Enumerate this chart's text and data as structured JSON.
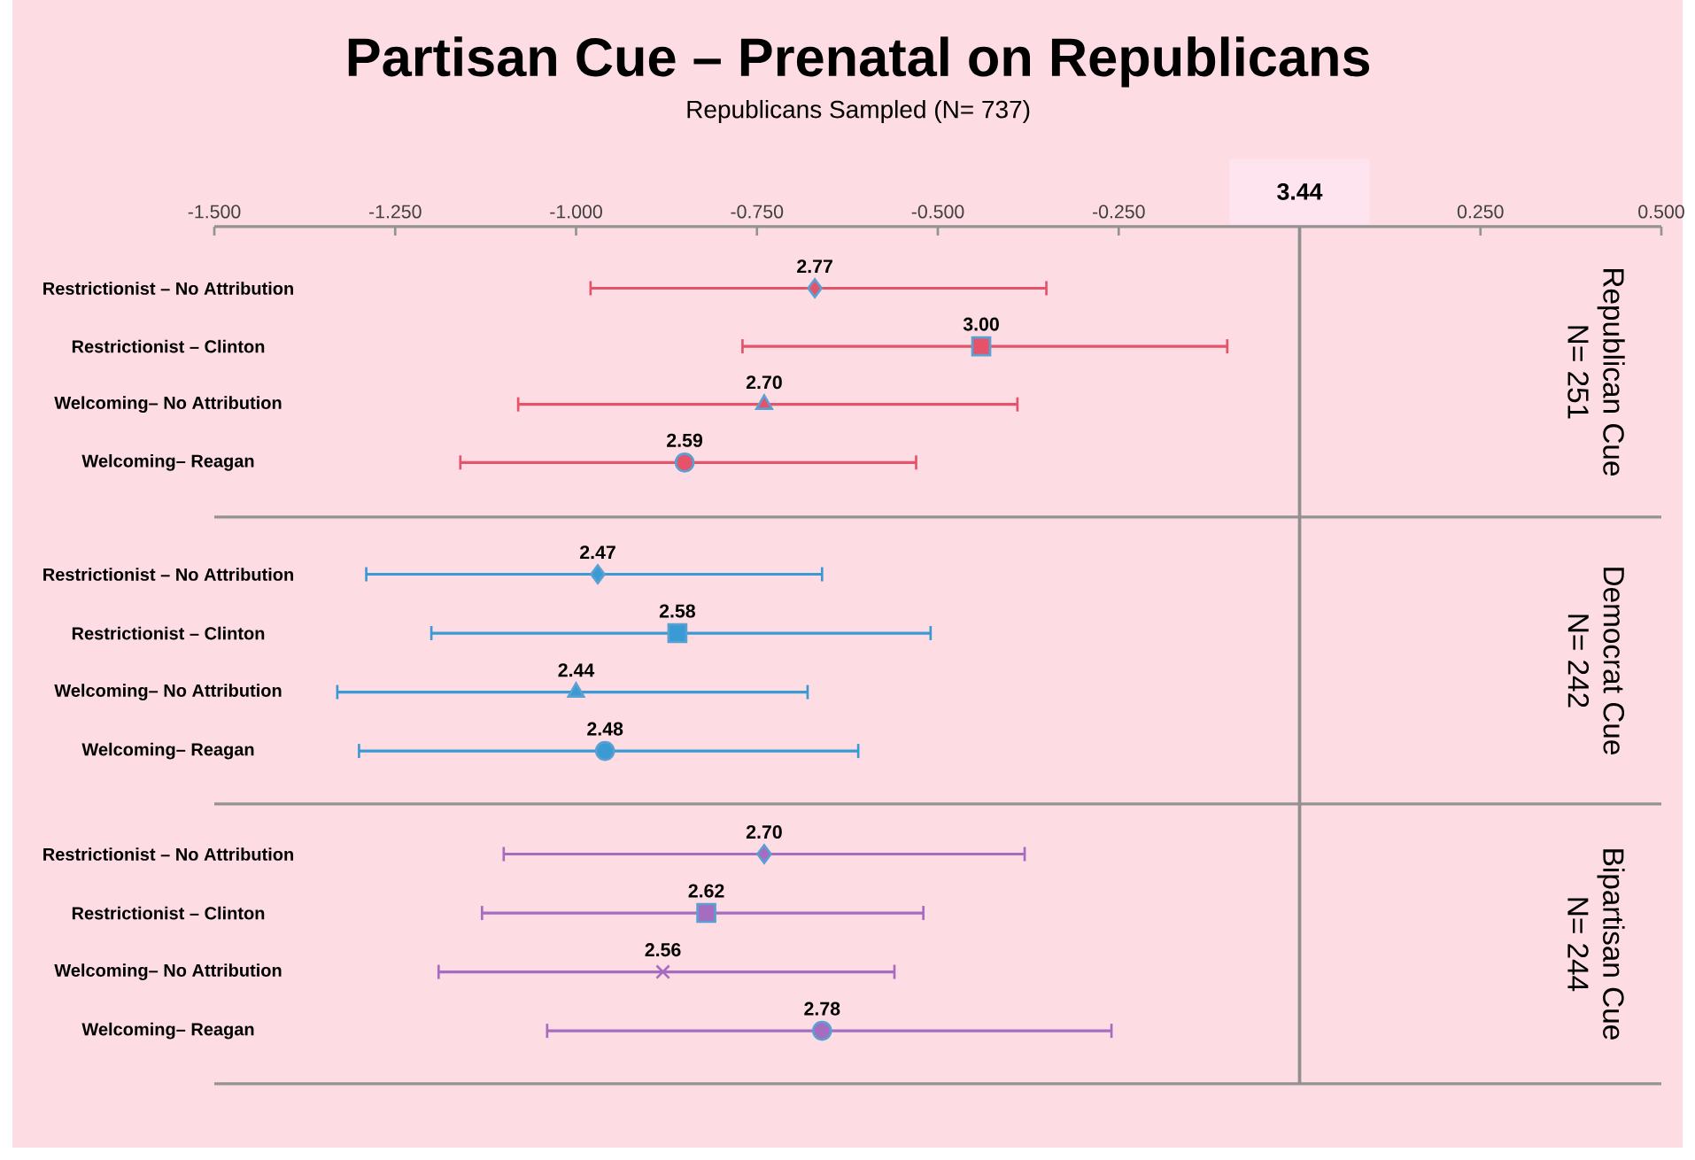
{
  "chart_data": [
    {
      "type": "scatter",
      "orientation": "horizontal",
      "title": "Partisan Cue – Prenatal on Republicans",
      "subtitle": "Republicans Sampled (N= 737)",
      "categories": [
        "Restrictionist – No Attribution",
        "Restrictionist – Clinton",
        "Welcoming– No Attribution",
        "Welcoming– Reagan"
      ],
      "xlim": [
        -1.5,
        0.5
      ],
      "xticks": [
        {
          "value": -1.5,
          "label": "-1.500"
        },
        {
          "value": -1.25,
          "label": "-1.250"
        },
        {
          "value": -1.0,
          "label": "-1.000"
        },
        {
          "value": -0.75,
          "label": "-0.750"
        },
        {
          "value": -0.5,
          "label": "-0.500"
        },
        {
          "value": -0.25,
          "label": "-0.250"
        },
        {
          "value": 0.25,
          "label": "0.250"
        },
        {
          "value": 0.5,
          "label": "0.500"
        }
      ],
      "ref_lines": [
        {
          "axis": "x",
          "value": 0,
          "color": "#909090"
        }
      ],
      "annotations": [
        "3.44",
        "Republican Cue",
        "N= 251",
        {
          "text": "2.77",
          "x": -0.67,
          "y": "Restrictionist – No Attribution"
        },
        {
          "text": "3.00",
          "x": -0.44,
          "y": "Restrictionist – Clinton"
        },
        {
          "text": "2.70",
          "x": -0.74,
          "y": "Welcoming– No Attribution"
        },
        {
          "text": "2.59",
          "x": -0.85,
          "y": "Welcoming– Reagan"
        }
      ],
      "series": [
        {
          "color": "#e5536a",
          "marker": "diamond",
          "values": [
            -0.67,
            null,
            null,
            null
          ],
          "errors": [
            [
              -0.98,
              -0.35
            ],
            null,
            null,
            null
          ]
        },
        {
          "color": "#e5536a",
          "marker": "square",
          "values": [
            null,
            -0.44,
            null,
            null
          ],
          "errors": [
            null,
            [
              -0.77,
              -0.1
            ],
            null,
            null
          ]
        },
        {
          "color": "#e5536a",
          "marker": "triangle",
          "values": [
            null,
            null,
            -0.74,
            null
          ],
          "errors": [
            null,
            null,
            [
              -1.08,
              -0.39
            ],
            null
          ]
        },
        {
          "color": "#e5536a",
          "marker": "circle",
          "values": [
            null,
            null,
            null,
            -0.85
          ],
          "errors": [
            null,
            null,
            null,
            [
              -1.16,
              -0.53
            ]
          ]
        }
      ]
    },
    {
      "type": "scatter",
      "orientation": "horizontal",
      "tick_labels": "y",
      "categories": [
        "Restrictionist – No Attribution",
        "Restrictionist – Clinton",
        "Welcoming– No Attribution",
        "Welcoming– Reagan"
      ],
      "xlim": [
        -1.5,
        0.5
      ],
      "ref_lines": [
        {
          "axis": "x",
          "value": 0,
          "color": "#909090"
        }
      ],
      "annotations": [
        "Democrat Cue",
        "N= 242",
        {
          "text": "2.47",
          "x": -0.97,
          "y": "Restrictionist – No Attribution"
        },
        {
          "text": "2.58",
          "x": -0.86,
          "y": "Restrictionist – Clinton"
        },
        {
          "text": "2.44",
          "x": -1.0,
          "y": "Welcoming– No Attribution"
        },
        {
          "text": "2.48",
          "x": -0.96,
          "y": "Welcoming– Reagan"
        }
      ],
      "series": [
        {
          "color": "#3a9ad4",
          "marker": "diamond",
          "values": [
            -0.97,
            null,
            null,
            null
          ],
          "errors": [
            [
              -1.29,
              -0.66
            ],
            null,
            null,
            null
          ]
        },
        {
          "color": "#3a9ad4",
          "marker": "square",
          "values": [
            null,
            -0.86,
            null,
            null
          ],
          "errors": [
            null,
            [
              -1.2,
              -0.51
            ],
            null,
            null
          ]
        },
        {
          "color": "#3a9ad4",
          "marker": "triangle",
          "values": [
            null,
            null,
            -1.0,
            null
          ],
          "errors": [
            null,
            null,
            [
              -1.33,
              -0.68
            ],
            null
          ]
        },
        {
          "color": "#3a9ad4",
          "marker": "circle",
          "values": [
            null,
            null,
            null,
            -0.96
          ],
          "errors": [
            null,
            null,
            null,
            [
              -1.3,
              -0.61
            ]
          ]
        }
      ]
    },
    {
      "type": "scatter",
      "orientation": "horizontal",
      "tick_labels": "y",
      "categories": [
        "Restrictionist – No Attribution",
        "Restrictionist – Clinton",
        "Welcoming– No Attribution",
        "Welcoming– Reagan"
      ],
      "xlim": [
        -1.5,
        0.5
      ],
      "ref_lines": [
        {
          "axis": "x",
          "value": 0,
          "color": "#909090"
        }
      ],
      "annotations": [
        "Bipartisan Cue",
        "N= 244",
        {
          "text": "2.70",
          "x": -0.74,
          "y": "Restrictionist – No Attribution"
        },
        {
          "text": "2.62",
          "x": -0.82,
          "y": "Restrictionist – Clinton"
        },
        {
          "text": "2.56",
          "x": -0.88,
          "y": "Welcoming– No Attribution"
        },
        {
          "text": "2.78",
          "x": -0.66,
          "y": "Welcoming– Reagan"
        }
      ],
      "series": [
        {
          "color": "#a66cc0",
          "marker": "diamond",
          "values": [
            -0.74,
            null,
            null,
            null
          ],
          "errors": [
            [
              -1.1,
              -0.38
            ],
            null,
            null,
            null
          ]
        },
        {
          "color": "#a66cc0",
          "marker": "square",
          "values": [
            null,
            -0.82,
            null,
            null
          ],
          "errors": [
            null,
            [
              -1.13,
              -0.52
            ],
            null,
            null
          ]
        },
        {
          "color": "#a66cc0",
          "marker": "cross",
          "values": [
            null,
            null,
            -0.88,
            null
          ],
          "errors": [
            null,
            null,
            [
              -1.19,
              -0.56
            ],
            null
          ]
        },
        {
          "color": "#a66cc0",
          "marker": "circle",
          "values": [
            null,
            null,
            null,
            -0.66
          ],
          "errors": [
            null,
            null,
            null,
            [
              -1.04,
              -0.26
            ]
          ]
        }
      ]
    }
  ]
}
